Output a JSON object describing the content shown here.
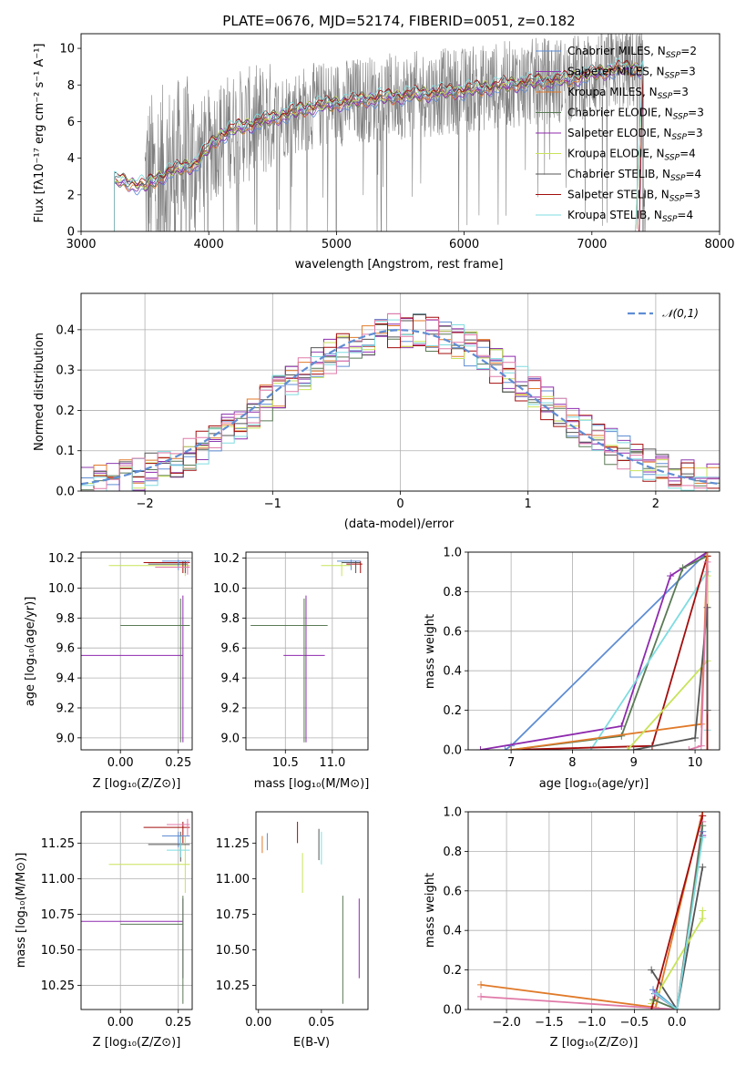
{
  "title": "PLATE=0676, MJD=52174, FIBERID=0051, z=0.182",
  "colors": {
    "Chabrier MILES": "#5f8dd3",
    "Salpeter MILES": "#8e3bb0",
    "Kroupa MILES": "#e07a2a",
    "Chabrier ELODIE": "#5a7a55",
    "Salpeter ELODIE": "#8e2aae",
    "Kroupa ELODIE": "#c8e35a",
    "Chabrier STELIB": "#555555",
    "Salpeter STELIB": "#a30d0d",
    "Kroupa STELIB": "#7fdce0",
    "pinkish": "#e07aa8",
    "data": "#808080"
  },
  "chart_data": [
    {
      "id": "spectrum",
      "type": "line",
      "title": "PLATE=0676, MJD=52174, FIBERID=0051, z=0.182",
      "xlabel": "wavelength [Angstrom, rest frame]",
      "ylabel": "Flux [fλ10⁻¹⁷ erg cm⁻² s⁻¹ A⁻¹]",
      "xlim": [
        3000,
        8000
      ],
      "ylim": [
        0,
        10.8
      ],
      "xticks": [
        3000,
        4000,
        5000,
        6000,
        7000,
        8000
      ],
      "yticks": [
        0,
        2,
        4,
        6,
        8,
        10
      ],
      "legend_position": "upper-right",
      "series": [
        {
          "name": "Chabrier MILES, N",
          "sub": "SSP",
          "suffix": "=2",
          "color": "#5f8dd3"
        },
        {
          "name": "Salpeter MILES, N",
          "sub": "SSP",
          "suffix": "=3",
          "color": "#8e3bb0"
        },
        {
          "name": "Kroupa MILES, N",
          "sub": "SSP",
          "suffix": "=3",
          "color": "#e07a2a"
        },
        {
          "name": "Chabrier ELODIE, N",
          "sub": "SSP",
          "suffix": "=3",
          "color": "#5a7a55"
        },
        {
          "name": "Salpeter ELODIE, N",
          "sub": "SSP",
          "suffix": "=3",
          "color": "#8e2aae"
        },
        {
          "name": "Kroupa ELODIE, N",
          "sub": "SSP",
          "suffix": "=4",
          "color": "#c8e35a"
        },
        {
          "name": "Chabrier STELIB, N",
          "sub": "SSP",
          "suffix": "=4",
          "color": "#555555"
        },
        {
          "name": "Salpeter STELIB, N",
          "sub": "SSP",
          "suffix": "=3",
          "color": "#a30d0d"
        },
        {
          "name": "Kroupa STELIB, N",
          "sub": "SSP",
          "suffix": "=4",
          "color": "#7fdce0"
        }
      ],
      "model_curve": {
        "x": [
          3250,
          3300,
          3400,
          3500,
          3600,
          3700,
          3800,
          3900,
          4000,
          4100,
          4200,
          4400,
          4600,
          4800,
          5000,
          5200,
          5500,
          5800,
          6000,
          6300,
          6600,
          6800,
          7000,
          7200,
          7400
        ],
        "y": [
          2.7,
          2.8,
          2.6,
          2.5,
          2.9,
          3.3,
          3.5,
          3.7,
          4.6,
          5.3,
          5.6,
          6.0,
          6.4,
          6.8,
          7.0,
          7.2,
          7.4,
          7.6,
          7.7,
          8.0,
          8.2,
          8.3,
          8.6,
          8.9,
          8.9
        ]
      }
    },
    {
      "id": "residuals",
      "type": "line",
      "xlabel": "(data-model)/error",
      "ylabel": "Normed distribution",
      "xlim": [
        -2.5,
        2.5
      ],
      "ylim": [
        0,
        0.49
      ],
      "xticks": [
        -2,
        -1,
        0,
        1,
        2
      ],
      "yticks": [
        0.0,
        0.1,
        0.2,
        0.3,
        0.4
      ],
      "grid": true,
      "legend": "𝒩(0,1)",
      "legend_position": "upper-right"
    },
    {
      "id": "age-vs-Z",
      "type": "scatter",
      "xlabel": "Z [log₁₀(Z/Z⊙)]",
      "ylabel": "age  [log₁₀(age/yr)]",
      "xlim": [
        -0.17,
        0.31
      ],
      "ylim": [
        8.92,
        10.24
      ],
      "xticks": [
        0.0,
        0.25
      ],
      "yticks": [
        9.0,
        9.2,
        9.4,
        9.6,
        9.8,
        10.0,
        10.2
      ],
      "grid": true
    },
    {
      "id": "age-vs-mass",
      "type": "scatter",
      "xlabel": "mass [log₁₀(M/M⊙)]",
      "xlim": [
        10.08,
        11.38
      ],
      "ylim": [
        8.92,
        10.24
      ],
      "xticks": [
        10.5,
        11.0
      ],
      "yticks": [
        9.0,
        9.2,
        9.4,
        9.6,
        9.8,
        10.0,
        10.2
      ],
      "grid": true
    },
    {
      "id": "massweight-vs-age",
      "type": "line",
      "xlabel": "age  [log₁₀(age/yr)]",
      "ylabel": "mass weight",
      "xlim": [
        6.3,
        10.4
      ],
      "ylim": [
        0,
        1.0
      ],
      "xticks": [
        7,
        8,
        9,
        10
      ],
      "yticks": [
        0.0,
        0.2,
        0.4,
        0.6,
        0.8,
        1.0
      ],
      "grid": true
    },
    {
      "id": "mass-vs-Z",
      "type": "scatter",
      "xlabel": "Z [log₁₀(Z/Z⊙)]",
      "ylabel": "mass [log₁₀(M/M⊙)]",
      "xlim": [
        -0.17,
        0.31
      ],
      "ylim": [
        10.08,
        11.47
      ],
      "xticks": [
        0.0,
        0.25
      ],
      "yticks": [
        10.25,
        10.5,
        10.75,
        11.0,
        11.25
      ],
      "grid": true
    },
    {
      "id": "mass-vs-ebv",
      "type": "scatter",
      "xlabel": "E(B-V)",
      "xlim": [
        -0.002,
        0.087
      ],
      "ylim": [
        10.08,
        11.47
      ],
      "xticks": [
        0.0,
        0.05
      ],
      "yticks": [
        10.25,
        10.5,
        10.75,
        11.0,
        11.25
      ],
      "grid": false
    },
    {
      "id": "massweight-vs-Z",
      "type": "line",
      "xlabel": "Z [log₁₀(Z/Z⊙)]",
      "ylabel": "mass weight",
      "xlim": [
        -2.45,
        0.5
      ],
      "ylim": [
        0,
        1.0
      ],
      "xticks": [
        -2.0,
        -1.5,
        -1.0,
        -0.5,
        0.0
      ],
      "yticks": [
        0.0,
        0.2,
        0.4,
        0.6,
        0.8,
        1.0
      ],
      "grid": true
    }
  ]
}
